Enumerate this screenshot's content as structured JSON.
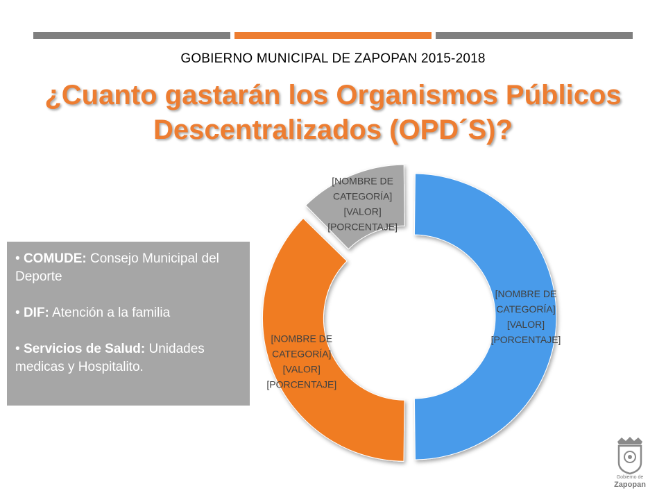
{
  "header": {
    "text": "GOBIERNO MUNICIPAL DE ZAPOPAN 2015-2018"
  },
  "title": {
    "line1": "¿Cuanto gastarán los Organismos Públicos",
    "line2": "Descentralizados (OPD´S)?"
  },
  "chart_data": {
    "type": "pie",
    "variant": "donut",
    "slices": [
      {
        "label_lines": [
          "[NOMBRE DE",
          "CATEGORÍA]",
          "[VALOR]",
          "[PORCENTAJE]"
        ],
        "value": 50,
        "color": "#4a9bea"
      },
      {
        "label_lines": [
          "[NOMBRE DE",
          "CATEGORÍA]",
          "[VALOR]",
          "[PORCENTAJE]"
        ],
        "value": 37.5,
        "color": "#f07b24"
      },
      {
        "label_lines": [
          "[NOMBRE DE",
          "CATEGORÍA]",
          "[VALOR]",
          "[PORCENTAJE]"
        ],
        "value": 12.5,
        "color": "#a6a6a6"
      }
    ]
  },
  "info_box": {
    "items": [
      {
        "term": "COMUDE:",
        "desc": " Consejo Municipal del Deporte"
      },
      {
        "term": "DIF:",
        "desc": " Atención a la familia"
      },
      {
        "term": "Servicios de Salud:",
        "desc": " Unidades medicas y Hospitalito."
      }
    ]
  },
  "logo": {
    "small": "Gobierno de",
    "main": "Zapopan"
  }
}
